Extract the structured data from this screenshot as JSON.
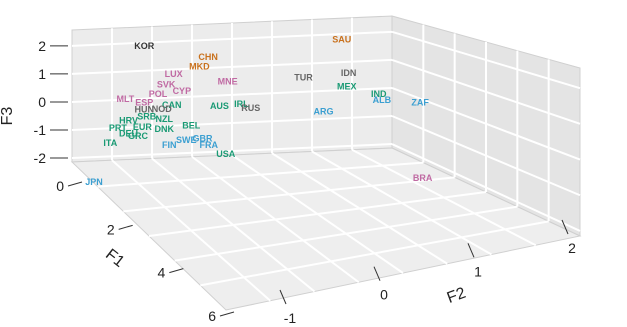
{
  "chart_data": {
    "type": "scatter",
    "subtype": "3d-scatter-text-labels",
    "grid": true,
    "axes": {
      "x": {
        "label": "F1",
        "range": [
          0,
          6
        ],
        "ticks": [
          "0",
          "2",
          "4",
          "6"
        ]
      },
      "y": {
        "label": "F2",
        "range": [
          -1,
          2
        ],
        "ticks": [
          "-1",
          "0",
          "1",
          "2"
        ]
      },
      "z": {
        "label": "F3",
        "range": [
          -2,
          2
        ],
        "ticks": [
          "-2",
          "-1",
          "0",
          "1",
          "2"
        ]
      }
    },
    "colors": {
      "black": "#333333",
      "orange": "#c9711d",
      "pink": "#c06aa3",
      "teal": "#1a9a74",
      "gray": "#666666",
      "blue": "#3b9fd1"
    },
    "points": [
      {
        "label": "KOR",
        "color": "black",
        "px": 0.23,
        "py": 0.15
      },
      {
        "label": "SAU",
        "color": "orange",
        "px": 0.545,
        "py": 0.13
      },
      {
        "label": "CHN",
        "color": "orange",
        "px": 0.332,
        "py": 0.183
      },
      {
        "label": "MKD",
        "color": "orange",
        "px": 0.318,
        "py": 0.213
      },
      {
        "label": "LUX",
        "color": "pink",
        "px": 0.277,
        "py": 0.236
      },
      {
        "label": "MNE",
        "color": "pink",
        "px": 0.363,
        "py": 0.259
      },
      {
        "label": "TUR",
        "color": "gray",
        "px": 0.484,
        "py": 0.246
      },
      {
        "label": "IDN",
        "color": "gray",
        "px": 0.556,
        "py": 0.232
      },
      {
        "label": "MEX",
        "color": "teal",
        "px": 0.553,
        "py": 0.274
      },
      {
        "label": "IND",
        "color": "teal",
        "px": 0.604,
        "py": 0.296
      },
      {
        "label": "ALB",
        "color": "blue",
        "px": 0.609,
        "py": 0.315
      },
      {
        "label": "ZAF",
        "color": "blue",
        "px": 0.67,
        "py": 0.322
      },
      {
        "label": "SVK",
        "color": "pink",
        "px": 0.265,
        "py": 0.268
      },
      {
        "label": "CYP",
        "color": "pink",
        "px": 0.29,
        "py": 0.288
      },
      {
        "label": "POL",
        "color": "pink",
        "px": 0.252,
        "py": 0.297
      },
      {
        "label": "MLT",
        "color": "pink",
        "px": 0.2,
        "py": 0.312
      },
      {
        "label": "ESP",
        "color": "pink",
        "px": 0.23,
        "py": 0.322
      },
      {
        "label": "CAN",
        "color": "teal",
        "px": 0.274,
        "py": 0.33
      },
      {
        "label": "AUS",
        "color": "teal",
        "px": 0.35,
        "py": 0.333
      },
      {
        "label": "IRL",
        "color": "teal",
        "px": 0.385,
        "py": 0.327
      },
      {
        "label": "RUS",
        "color": "gray",
        "px": 0.4,
        "py": 0.34
      },
      {
        "label": "ARG",
        "color": "blue",
        "px": 0.516,
        "py": 0.35
      },
      {
        "label": "HUN",
        "color": "gray",
        "px": 0.23,
        "py": 0.344
      },
      {
        "label": "NOD",
        "color": "gray",
        "px": 0.258,
        "py": 0.343
      },
      {
        "label": "HRV",
        "color": "teal",
        "px": 0.205,
        "py": 0.378
      },
      {
        "label": "SRB",
        "color": "teal",
        "px": 0.234,
        "py": 0.366
      },
      {
        "label": "NZL",
        "color": "teal",
        "px": 0.262,
        "py": 0.373
      },
      {
        "label": "PRT",
        "color": "teal",
        "px": 0.188,
        "py": 0.4
      },
      {
        "label": "EUR",
        "color": "teal",
        "px": 0.227,
        "py": 0.397
      },
      {
        "label": "DNK",
        "color": "teal",
        "px": 0.262,
        "py": 0.403
      },
      {
        "label": "BEL",
        "color": "teal",
        "px": 0.305,
        "py": 0.393
      },
      {
        "label": "DEU",
        "color": "teal",
        "px": 0.205,
        "py": 0.418
      },
      {
        "label": "GRC",
        "color": "teal",
        "px": 0.22,
        "py": 0.425
      },
      {
        "label": "ITA",
        "color": "teal",
        "px": 0.176,
        "py": 0.446
      },
      {
        "label": "FIN",
        "color": "blue",
        "px": 0.27,
        "py": 0.452
      },
      {
        "label": "SWE",
        "color": "blue",
        "px": 0.297,
        "py": 0.437
      },
      {
        "label": "GBR",
        "color": "blue",
        "px": 0.323,
        "py": 0.432
      },
      {
        "label": "FRA",
        "color": "blue",
        "px": 0.333,
        "py": 0.452
      },
      {
        "label": "USA",
        "color": "teal",
        "px": 0.36,
        "py": 0.48
      },
      {
        "label": "BRA",
        "color": "pink",
        "px": 0.674,
        "py": 0.554
      },
      {
        "label": "JPN",
        "color": "blue",
        "px": 0.15,
        "py": 0.565
      }
    ]
  }
}
